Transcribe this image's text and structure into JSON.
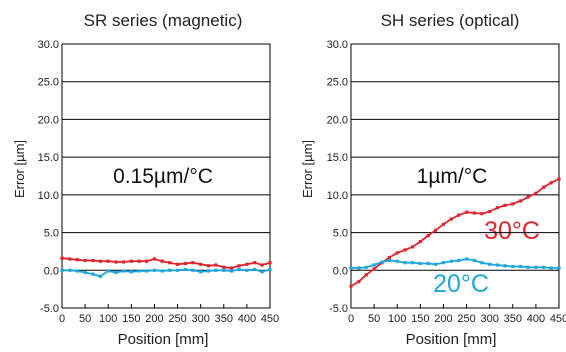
{
  "chart_data": [
    {
      "type": "line",
      "title": "SR series (magnetic)",
      "xlabel": "Position [mm]",
      "ylabel": "Error [µm]",
      "xlim": [
        0,
        450
      ],
      "ylim": [
        -5,
        30
      ],
      "x_ticks": [
        "0",
        "50",
        "100",
        "150",
        "200",
        "250",
        "300",
        "350",
        "400",
        "450"
      ],
      "y_ticks": [
        "-5.0",
        "0.0",
        "5.0",
        "10.0",
        "15.0",
        "20.0",
        "25.0",
        "30.0"
      ],
      "annotation": "0.15µm/°C",
      "grid": "horizontal",
      "series": [
        {
          "color": "#e0252f",
          "x": [
            0,
            17,
            33,
            50,
            67,
            83,
            100,
            117,
            133,
            150,
            167,
            183,
            200,
            217,
            233,
            250,
            267,
            283,
            300,
            317,
            333,
            350,
            367,
            383,
            400,
            417,
            433,
            450
          ],
          "y": [
            1.6,
            1.5,
            1.4,
            1.3,
            1.3,
            1.2,
            1.2,
            1.1,
            1.1,
            1.2,
            1.2,
            1.2,
            1.5,
            1.2,
            1.0,
            0.8,
            0.9,
            1.0,
            0.8,
            0.6,
            0.7,
            0.4,
            0.3,
            0.6,
            0.8,
            1.0,
            0.7,
            1.0
          ]
        },
        {
          "color": "#1fa7dd",
          "x": [
            0,
            17,
            33,
            50,
            67,
            83,
            100,
            117,
            133,
            150,
            167,
            183,
            200,
            217,
            233,
            250,
            267,
            283,
            300,
            317,
            333,
            350,
            367,
            383,
            400,
            417,
            433,
            450
          ],
          "y": [
            0.0,
            0.0,
            -0.1,
            -0.3,
            -0.5,
            -0.8,
            -0.1,
            -0.3,
            -0.1,
            -0.2,
            -0.1,
            -0.1,
            0.0,
            -0.1,
            0.0,
            0.0,
            0.1,
            0.0,
            -0.2,
            -0.1,
            0.0,
            0.0,
            -0.1,
            0.1,
            0.0,
            0.1,
            -0.2,
            0.1
          ]
        }
      ]
    },
    {
      "type": "line",
      "title": "SH series (optical)",
      "xlabel": "Position [mm]",
      "ylabel": "Error [µm]",
      "xlim": [
        0,
        450
      ],
      "ylim": [
        -5,
        30
      ],
      "x_ticks": [
        "0",
        "50",
        "100",
        "150",
        "200",
        "250",
        "300",
        "350",
        "400",
        "450"
      ],
      "y_ticks": [
        "-5.0",
        "0.0",
        "5.0",
        "10.0",
        "15.0",
        "20.0",
        "25.0",
        "30.0"
      ],
      "annotation": "1µm/°C",
      "grid": "horizontal",
      "series": [
        {
          "name": "30°C",
          "color": "#e0252f",
          "x": [
            0,
            17,
            33,
            50,
            67,
            83,
            100,
            117,
            133,
            150,
            167,
            183,
            200,
            217,
            233,
            250,
            267,
            283,
            300,
            317,
            333,
            350,
            367,
            383,
            400,
            417,
            433,
            450
          ],
          "y": [
            -2.1,
            -1.5,
            -0.6,
            0.2,
            1.0,
            1.7,
            2.3,
            2.7,
            3.1,
            3.8,
            4.6,
            5.3,
            6.1,
            6.8,
            7.3,
            7.7,
            7.6,
            7.5,
            7.8,
            8.3,
            8.6,
            8.8,
            9.2,
            9.7,
            10.2,
            11.0,
            11.6,
            12.1
          ]
        },
        {
          "name": "20°C",
          "color": "#1fa7dd",
          "x": [
            0,
            17,
            33,
            50,
            67,
            83,
            100,
            117,
            133,
            150,
            167,
            183,
            200,
            217,
            233,
            250,
            267,
            283,
            300,
            317,
            333,
            350,
            367,
            383,
            400,
            417,
            433,
            450
          ],
          "y": [
            0.3,
            0.3,
            0.4,
            0.7,
            1.1,
            1.3,
            1.2,
            1.0,
            1.0,
            0.9,
            0.9,
            0.8,
            1.0,
            1.2,
            1.3,
            1.5,
            1.3,
            1.0,
            0.8,
            0.7,
            0.6,
            0.5,
            0.5,
            0.4,
            0.4,
            0.4,
            0.3,
            0.3
          ]
        }
      ]
    }
  ]
}
